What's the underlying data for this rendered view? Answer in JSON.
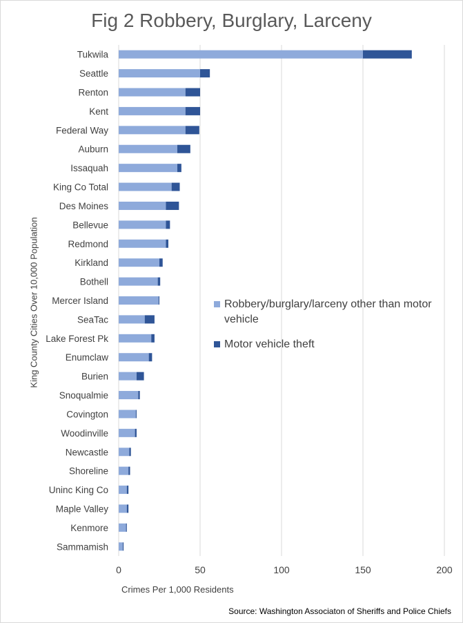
{
  "title": "Fig 2 Robbery, Burglary, Larceny",
  "source": "Source: Washington Associaton of Sheriffs and Police Chiefs",
  "chart_data": {
    "type": "bar",
    "orientation": "horizontal",
    "stacked": true,
    "title": "Fig 2 Robbery, Burglary, Larceny",
    "xlabel": "Crimes Per 1,000 Residents",
    "ylabel": "King County Cities Over 10,000 Population",
    "xlim": [
      0,
      200
    ],
    "xticks": [
      0,
      50,
      100,
      150,
      200
    ],
    "grid": true,
    "legend_position": "right",
    "categories": [
      "Tukwila",
      "Seattle",
      "Renton",
      "Kent",
      "Federal Way",
      "Auburn",
      "Issaquah",
      "King Co Total",
      "Des Moines",
      "Bellevue",
      "Redmond",
      "Kirkland",
      "Bothell",
      "Mercer Island",
      "SeaTac",
      "Lake Forest Pk",
      "Enumclaw",
      "Burien",
      "Snoqualmie",
      "Covington",
      "Woodinville",
      "Newcastle",
      "Shoreline",
      "Uninc King Co",
      "Maple Valley",
      "Kenmore",
      "Sammamish"
    ],
    "series": [
      {
        "name": "Robbery/burglary/larceny other than motor vehicle",
        "color": "#8eaadb",
        "values": [
          150,
          50,
          41,
          41,
          41,
          36,
          36,
          32.5,
          29,
          29,
          29,
          25,
          24,
          24.5,
          16,
          20,
          18.5,
          11,
          12,
          10.5,
          10,
          6.5,
          6,
          5,
          5,
          4.5,
          2.5
        ]
      },
      {
        "name": "Motor vehicle theft",
        "color": "#2f5597",
        "values": [
          30,
          6,
          9,
          9,
          8.5,
          8,
          2.5,
          5,
          8,
          2.5,
          1.5,
          2,
          1.5,
          0.5,
          6,
          2,
          2,
          4.5,
          1,
          0.5,
          1,
          1,
          1,
          1,
          1,
          0.5,
          0.5
        ]
      }
    ]
  }
}
